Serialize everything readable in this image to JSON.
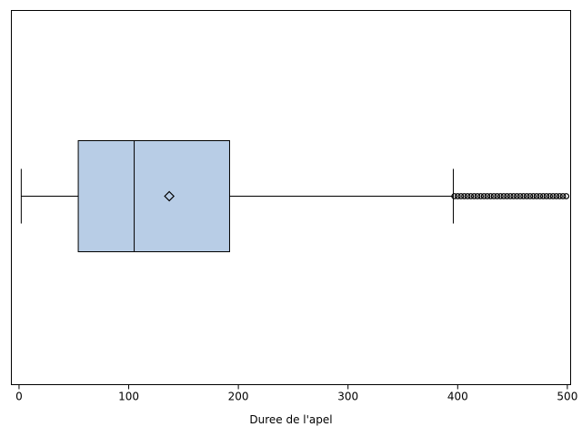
{
  "chart_data": {
    "type": "boxplot",
    "orientation": "horizontal",
    "xlabel": "Duree de l'apel",
    "xlim": [
      -7,
      503
    ],
    "xticks": [
      0,
      100,
      200,
      300,
      400,
      500
    ],
    "box": {
      "min": 2,
      "q1": 54,
      "median": 105,
      "q3": 192,
      "whisker_high": 396,
      "mean": 137
    },
    "outliers": [
      397,
      400,
      403,
      406,
      409,
      412,
      415,
      418,
      421,
      424,
      427,
      430,
      433,
      436,
      439,
      442,
      445,
      448,
      451,
      454,
      457,
      460,
      463,
      466,
      469,
      472,
      475,
      478,
      481,
      484,
      487,
      490,
      493,
      496,
      499
    ],
    "colors": {
      "box_fill": "#b8cde6",
      "line": "#000000",
      "background": "#ffffff"
    },
    "grid": false,
    "legend": "none"
  }
}
